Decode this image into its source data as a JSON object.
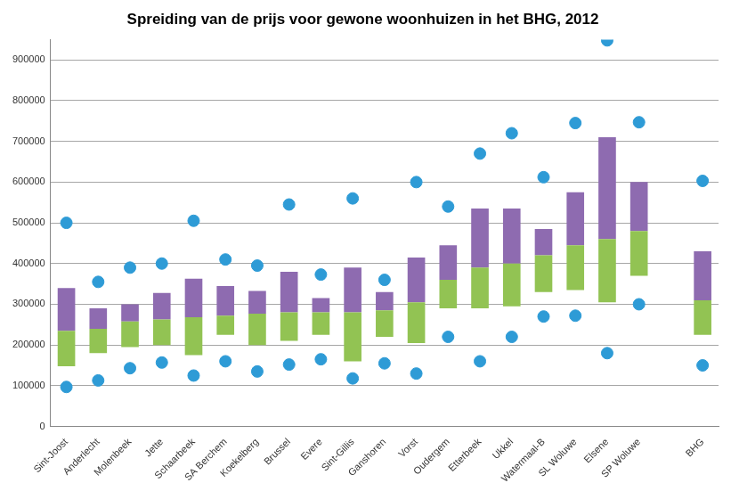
{
  "chart_data": {
    "type": "bar",
    "title": "Spreiding van de prijs voor gewone woonhuizen in het BHG, 2012",
    "categories": [
      "Sint-Joost",
      "Anderlecht",
      "Molenbeek",
      "Jette",
      "Schaarbeek",
      "SA Berchem",
      "Koekelberg",
      "Brussel",
      "Evere",
      "Sint-Gillis",
      "Ganshoren",
      "Vorst",
      "Oudergem",
      "Etterbeek",
      "Ukkel",
      "Watermaal-B",
      "SL Woluwe",
      "Elsene",
      "SP Woluwe",
      null,
      "BHG"
    ],
    "series": [
      {
        "type": "bar",
        "color": "#92c353",
        "values": [
          [
            148000,
            235000
          ],
          [
            180000,
            240000
          ],
          [
            195000,
            258000
          ],
          [
            200000,
            263000
          ],
          [
            175000,
            268000
          ],
          [
            225000,
            272000
          ],
          [
            200000,
            277000
          ],
          [
            210000,
            280000
          ],
          [
            225000,
            280000
          ],
          [
            160000,
            280000
          ],
          [
            220000,
            285000
          ],
          [
            205000,
            305000
          ],
          [
            290000,
            360000
          ],
          [
            290000,
            390000
          ],
          [
            295000,
            400000
          ],
          [
            330000,
            420000
          ],
          [
            335000,
            445000
          ],
          [
            305000,
            460000
          ],
          [
            370000,
            480000
          ],
          null,
          [
            225000,
            310000
          ]
        ]
      },
      {
        "type": "bar",
        "color": "#8e6bb0",
        "values": [
          [
            235000,
            340000
          ],
          [
            240000,
            290000
          ],
          [
            258000,
            300000
          ],
          [
            263000,
            328000
          ],
          [
            268000,
            363000
          ],
          [
            272000,
            345000
          ],
          [
            277000,
            333000
          ],
          [
            280000,
            380000
          ],
          [
            280000,
            315000
          ],
          [
            280000,
            390000
          ],
          [
            285000,
            330000
          ],
          [
            305000,
            415000
          ],
          [
            360000,
            445000
          ],
          [
            390000,
            535000
          ],
          [
            400000,
            535000
          ],
          [
            420000,
            485000
          ],
          [
            445000,
            575000
          ],
          [
            460000,
            710000
          ],
          [
            480000,
            600000
          ],
          null,
          [
            310000,
            430000
          ]
        ]
      },
      {
        "type": "scatter",
        "marker": "circle",
        "color": "#2e9bd6",
        "values": [
          97000,
          113000,
          143000,
          157000,
          125000,
          160000,
          135000,
          152000,
          165000,
          118000,
          155000,
          130000,
          220000,
          160000,
          220000,
          270000,
          272000,
          180000,
          300000,
          null,
          150000
        ]
      },
      {
        "type": "scatter",
        "marker": "circle",
        "color": "#2e9bd6",
        "values": [
          500000,
          355000,
          390000,
          400000,
          505000,
          410000,
          395000,
          545000,
          373000,
          560000,
          360000,
          600000,
          540000,
          670000,
          720000,
          612000,
          745000,
          948000,
          747000,
          null,
          603000
        ]
      }
    ],
    "ylim": [
      0,
      950000
    ],
    "yticks": [
      0,
      100000,
      200000,
      300000,
      400000,
      500000,
      600000,
      700000,
      800000,
      900000
    ],
    "grid": true
  }
}
